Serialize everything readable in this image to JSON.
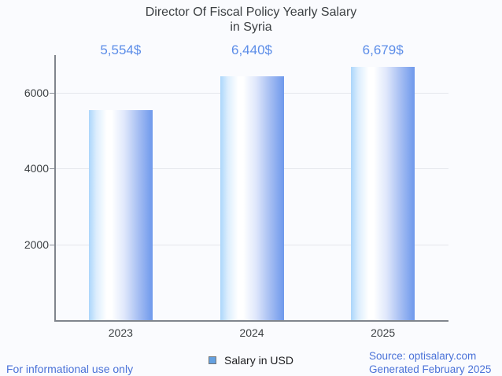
{
  "title": {
    "line1": "Director Of Fiscal Policy Yearly Salary",
    "line2": "in Syria"
  },
  "legend": {
    "label": "Salary in USD"
  },
  "footer": {
    "disclaimer": "For informational use only",
    "source": "Source: optisalary.com",
    "generated": "Generated February 2025"
  },
  "colors": {
    "title_text": "#3c4043",
    "axis_text": "#3c4043",
    "value_label": "#5c8de8",
    "footer_link": "#4a72d8",
    "bar_gradient_left": "#abd6fb",
    "bar_gradient_highlight": "#ffffff",
    "bar_gradient_right": "#6e99ec",
    "legend_swatch_fill": "#64a0e0",
    "legend_swatch_border": "#757575",
    "axis_line": "#80858d",
    "gridline": "#e4e7ec",
    "background": "#fafbfe"
  },
  "chart_data": {
    "type": "bar",
    "title": "Director Of Fiscal Policy Yearly Salary in Syria",
    "categories": [
      "2023",
      "2024",
      "2025"
    ],
    "values": [
      5554,
      6440,
      6679
    ],
    "value_labels": [
      "5,554$",
      "6,440$",
      "6,679$"
    ],
    "series_name": "Salary in USD",
    "xlabel": "",
    "ylabel": "",
    "ylim": [
      0,
      7000
    ],
    "yticks": [
      2000,
      4000,
      6000
    ],
    "ytick_labels": [
      "2000",
      "4000",
      "6000"
    ],
    "grid": true,
    "legend_position": "bottom"
  }
}
